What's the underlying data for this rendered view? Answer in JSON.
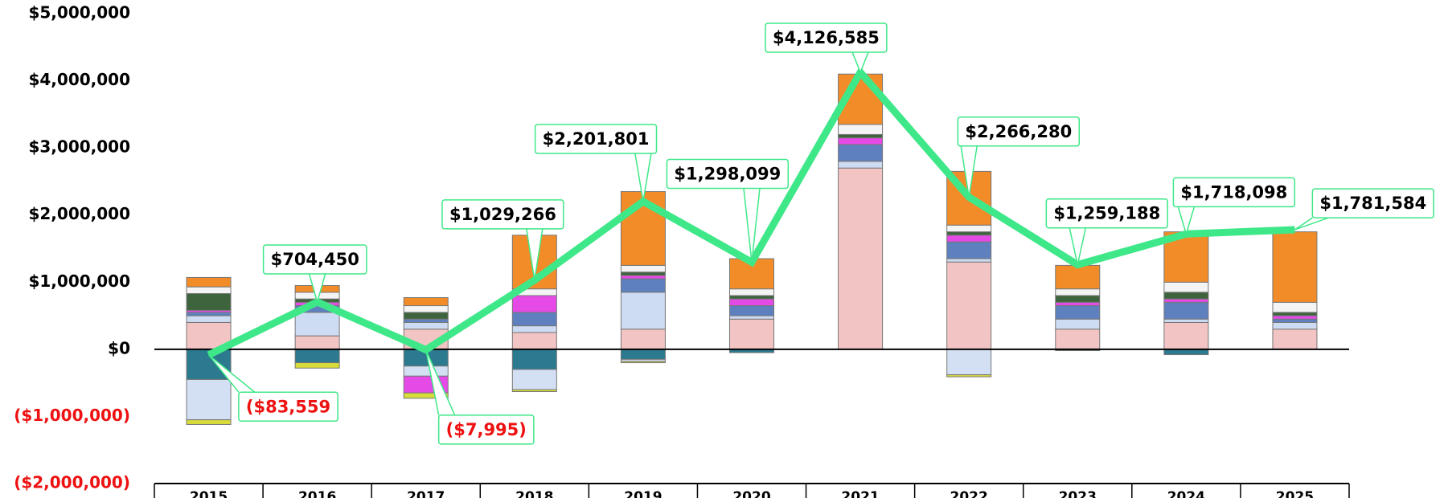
{
  "chart_data": {
    "type": "bar",
    "categories": [
      "2015",
      "2016",
      "2017",
      "2018",
      "2019",
      "2020",
      "2021",
      "2022",
      "2023",
      "2024",
      "2025"
    ],
    "ylim": [
      -2000000,
      5000000
    ],
    "yticks": [
      {
        "value": -2000000,
        "label": "($2,000,000)"
      },
      {
        "value": -1000000,
        "label": "($1,000,000)"
      },
      {
        "value": 0,
        "label": "$0"
      },
      {
        "value": 1000000,
        "label": "$1,000,000"
      },
      {
        "value": 2000000,
        "label": "$2,000,000"
      },
      {
        "value": 3000000,
        "label": "$3,000,000"
      },
      {
        "value": 4000000,
        "label": "$4,000,000"
      },
      {
        "value": 5000000,
        "label": "$5,000,000"
      }
    ],
    "negative_color": "#ee1111",
    "series": [
      {
        "color": "#f3c4c4",
        "values": [
          400000,
          200000,
          300000,
          250000,
          300000,
          450000,
          2700000,
          1300000,
          300000,
          400000,
          300000
        ]
      },
      {
        "color": "#cddcf2",
        "values": [
          100000,
          350000,
          100000,
          100000,
          550000,
          50000,
          100000,
          50000,
          150000,
          50000,
          100000
        ]
      },
      {
        "color": "#5f80bf",
        "values": [
          50000,
          100000,
          50000,
          200000,
          200000,
          150000,
          250000,
          250000,
          200000,
          250000,
          50000
        ]
      },
      {
        "color": "#e64ae6",
        "values": [
          30000,
          50000,
          0,
          250000,
          50000,
          100000,
          100000,
          100000,
          50000,
          50000,
          50000
        ]
      },
      {
        "color": "#3e643e",
        "values": [
          250000,
          50000,
          100000,
          0,
          50000,
          50000,
          50000,
          50000,
          100000,
          100000,
          50000
        ]
      },
      {
        "color": "#f4f4f4",
        "values": [
          100000,
          100000,
          100000,
          100000,
          100000,
          100000,
          150000,
          100000,
          100000,
          150000,
          150000
        ]
      },
      {
        "color": "#f28c28",
        "values": [
          140000,
          100000,
          120000,
          800000,
          1100000,
          450000,
          750000,
          800000,
          350000,
          750000,
          1050000
        ]
      },
      {
        "color": "#2b7a8f",
        "values": [
          -450000,
          -200000,
          -250000,
          -300000,
          -150000,
          -50000,
          0,
          0,
          -20000,
          -80000,
          0
        ]
      },
      {
        "color": "#d3e0f4",
        "values": [
          -600000,
          0,
          -150000,
          -300000,
          -30000,
          0,
          0,
          -380000,
          0,
          0,
          0
        ]
      },
      {
        "color": "#e64ae6",
        "values": [
          0,
          0,
          -250000,
          0,
          0,
          0,
          0,
          0,
          0,
          0,
          0
        ]
      },
      {
        "color": "#d8dc3a",
        "values": [
          -70000,
          -80000,
          -80000,
          -30000,
          -20000,
          0,
          0,
          -30000,
          0,
          0,
          0
        ]
      },
      {
        "type": "line",
        "color": "#3ee888",
        "values": [
          -83559,
          704450,
          -7995,
          1029266,
          2201801,
          1298099,
          4126585,
          2266280,
          1259188,
          1718098,
          1781584
        ],
        "value_labels": [
          "($83,559",
          "$704,450",
          "($7,995)",
          "$1,029,266",
          "$2,201,801",
          "$1,298,099",
          "$4,126,585",
          "$2,266,280",
          "$1,259,188",
          "$1,718,098",
          "$1,781,584"
        ]
      }
    ]
  }
}
